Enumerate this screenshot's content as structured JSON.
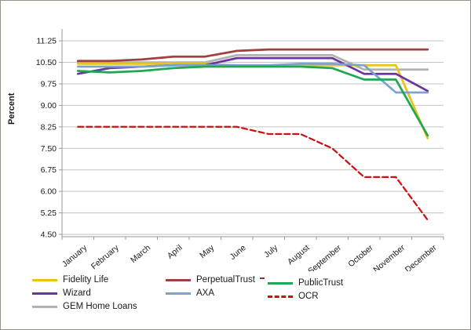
{
  "chart_data": {
    "type": "line",
    "title": "",
    "xlabel": "",
    "ylabel": "Percent",
    "ylim": [
      4.5,
      11.7
    ],
    "y_tick_step": 0.75,
    "grid": true,
    "legend_position": "bottom",
    "categories": [
      "January",
      "February",
      "March",
      "April",
      "May",
      "June",
      "July",
      "August",
      "September",
      "October",
      "November",
      "December"
    ],
    "y_ticks": [
      11.25,
      10.5,
      9.75,
      9.0,
      8.25,
      7.5,
      6.75,
      6.0,
      5.25,
      4.5
    ],
    "series": [
      {
        "name": "Fidelity Life",
        "color": "#E9C319",
        "dash": "solid",
        "values": [
          10.45,
          10.45,
          10.45,
          10.45,
          10.45,
          10.4,
          10.4,
          10.4,
          10.4,
          10.4,
          10.4,
          7.85
        ]
      },
      {
        "name": "PerpetualTrust",
        "color": "#A13F3F",
        "dash": "solid",
        "values": [
          10.55,
          10.55,
          10.6,
          10.7,
          10.7,
          10.9,
          10.95,
          10.95,
          10.95,
          10.95,
          10.95,
          10.95
        ]
      },
      {
        "name": "PublicTrust",
        "color": "#21A74F",
        "dash": "solid",
        "values": [
          10.2,
          10.15,
          10.2,
          10.3,
          10.35,
          10.35,
          10.35,
          10.35,
          10.3,
          9.9,
          9.9,
          7.95
        ]
      },
      {
        "name": "Wizard",
        "color": "#6A35A0",
        "dash": "solid",
        "values": [
          10.1,
          10.3,
          10.35,
          10.4,
          10.4,
          10.65,
          10.65,
          10.65,
          10.65,
          10.1,
          10.1,
          9.5
        ]
      },
      {
        "name": "AXA",
        "color": "#7DA2CE",
        "dash": "solid",
        "values": [
          10.35,
          10.35,
          10.35,
          10.4,
          10.4,
          10.4,
          10.4,
          10.45,
          10.45,
          10.4,
          9.45,
          9.45
        ]
      },
      {
        "name": "OCR",
        "color": "#CC1111",
        "dash": "dashed",
        "values": [
          8.25,
          8.25,
          8.25,
          8.25,
          8.25,
          8.25,
          8.0,
          8.0,
          7.5,
          6.5,
          6.5,
          5.0
        ]
      },
      {
        "name": "GEM Home Loans",
        "color": "#B2B2B2",
        "dash": "solid",
        "values": [
          10.5,
          10.5,
          10.5,
          10.5,
          10.5,
          10.75,
          10.75,
          10.75,
          10.75,
          10.25,
          10.25,
          10.25
        ]
      }
    ],
    "axis_color": "#9a9a9a",
    "grid_color": "#c3c3c3",
    "tick_label_format": "0.00"
  }
}
